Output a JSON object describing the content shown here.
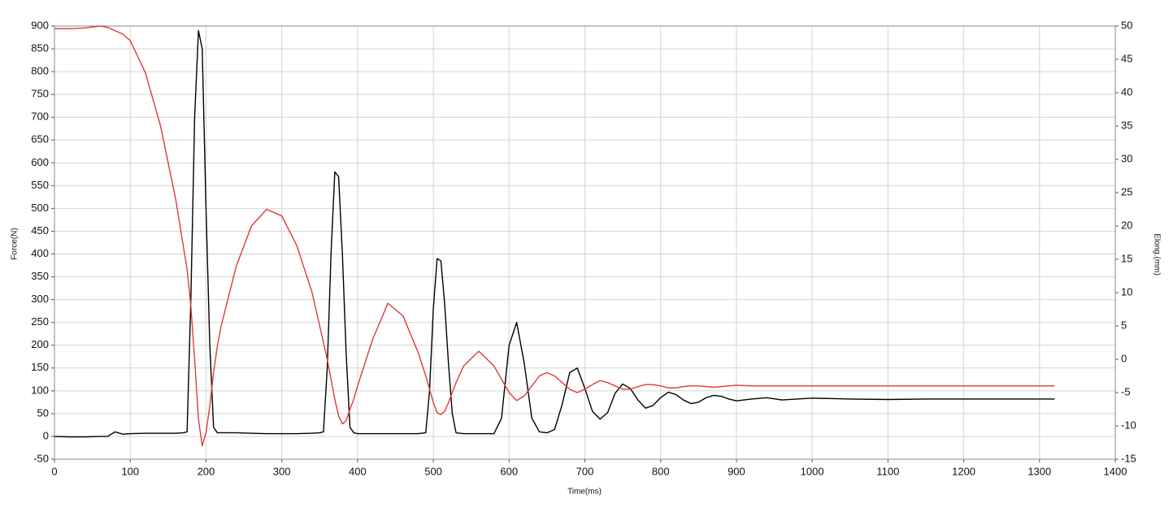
{
  "chart_data": {
    "type": "line",
    "xlabel": "Time(ms)",
    "ylabel": "Force(N)",
    "y2label": "Elong.(mm)",
    "grid": true,
    "xlim": [
      0,
      1400
    ],
    "xticks": [
      0,
      100,
      200,
      300,
      400,
      500,
      600,
      700,
      800,
      900,
      1000,
      1100,
      1200,
      1300,
      1400
    ],
    "ylim": [
      -50,
      900
    ],
    "yticks": [
      -50,
      0,
      50,
      100,
      150,
      200,
      250,
      300,
      350,
      400,
      450,
      500,
      550,
      600,
      650,
      700,
      750,
      800,
      850,
      900
    ],
    "y2lim": [
      -15,
      50
    ],
    "y2ticks": [
      -15,
      -10,
      -5,
      0,
      5,
      10,
      15,
      20,
      25,
      30,
      35,
      40,
      45,
      50
    ],
    "x": [
      0,
      20,
      40,
      60,
      70,
      80,
      90,
      100,
      120,
      140,
      160,
      170,
      175,
      180,
      185,
      190,
      195,
      200,
      205,
      210,
      215,
      220,
      240,
      260,
      280,
      300,
      320,
      340,
      350,
      355,
      360,
      365,
      370,
      375,
      380,
      385,
      390,
      395,
      400,
      420,
      440,
      460,
      480,
      490,
      495,
      500,
      505,
      510,
      515,
      520,
      525,
      530,
      540,
      560,
      580,
      590,
      600,
      610,
      620,
      630,
      640,
      650,
      660,
      670,
      680,
      690,
      700,
      710,
      720,
      730,
      740,
      750,
      760,
      770,
      780,
      790,
      800,
      810,
      820,
      830,
      840,
      850,
      860,
      870,
      880,
      890,
      900,
      920,
      940,
      960,
      980,
      1000,
      1050,
      1100,
      1150,
      1200,
      1250,
      1300,
      1320
    ],
    "series": [
      {
        "color": "#000000",
        "axis": "y",
        "values": [
          0,
          -1,
          -1,
          0,
          0,
          10,
          5,
          6,
          7,
          7,
          7,
          8,
          10,
          300,
          700,
          890,
          850,
          500,
          200,
          20,
          8,
          8,
          8,
          7,
          6,
          6,
          6,
          7,
          8,
          10,
          150,
          400,
          580,
          570,
          400,
          180,
          20,
          8,
          6,
          6,
          6,
          6,
          6,
          8,
          100,
          280,
          390,
          385,
          290,
          160,
          50,
          8,
          6,
          6,
          6,
          40,
          200,
          250,
          160,
          40,
          10,
          8,
          15,
          70,
          140,
          150,
          105,
          55,
          38,
          52,
          95,
          115,
          105,
          80,
          62,
          68,
          85,
          97,
          92,
          80,
          72,
          75,
          85,
          90,
          88,
          82,
          78,
          82,
          85,
          80,
          82,
          84,
          82,
          81,
          82,
          82,
          82,
          82,
          82
        ]
      },
      {
        "color": "#e03a3a",
        "axis": "y2",
        "values": [
          49.6,
          49.6,
          49.7,
          50,
          49.8,
          49.3,
          48.8,
          47.8,
          43,
          35,
          24,
          17,
          13.5,
          8,
          0,
          -9,
          -13,
          -11,
          -7,
          -2,
          2,
          5,
          14,
          20,
          22.5,
          21.5,
          17,
          10,
          5,
          2.5,
          0,
          -3,
          -6,
          -8.5,
          -9.7,
          -9.2,
          -7.5,
          -6,
          -4,
          3,
          8.4,
          6.5,
          1,
          -2.5,
          -4.5,
          -6.5,
          -8,
          -8.3,
          -7.8,
          -6.5,
          -5,
          -3.5,
          -1,
          1.2,
          -1,
          -3,
          -5,
          -6.2,
          -5.5,
          -4,
          -2.5,
          -2,
          -2.5,
          -3.5,
          -4.5,
          -5,
          -4.5,
          -3.8,
          -3.2,
          -3.5,
          -4,
          -4.5,
          -4.5,
          -4.1,
          -3.8,
          -3.8,
          -4,
          -4.3,
          -4.3,
          -4.1,
          -4,
          -4,
          -4.1,
          -4.2,
          -4.1,
          -4,
          -3.9,
          -4,
          -4,
          -4,
          -4,
          -4,
          -4,
          -4,
          -4,
          -4,
          -4,
          -4,
          -4
        ]
      }
    ]
  }
}
